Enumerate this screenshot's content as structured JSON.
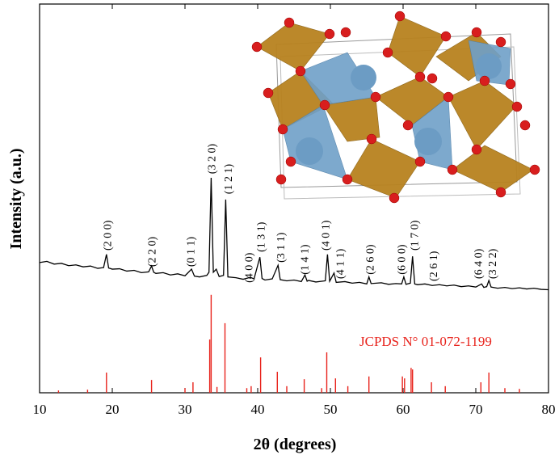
{
  "chart_data": {
    "type": "line",
    "x_label": "2θ (degrees)",
    "y_label": "Intensity (a.u.)",
    "xlim": [
      10,
      80
    ],
    "xticks": [
      10,
      20,
      30,
      40,
      50,
      60,
      70,
      80
    ],
    "ylim": [
      0,
      100
    ],
    "grid": false,
    "series": [
      {
        "color": "#000000",
        "x": [
          10,
          11,
          12,
          13,
          14,
          15,
          16,
          17,
          18,
          18.8,
          19.2,
          19.5,
          20,
          21,
          22,
          23,
          24,
          25,
          25.4,
          25.7,
          26,
          27,
          28,
          29,
          30,
          30.9,
          31.3,
          32,
          33,
          33.3,
          33.6,
          33.9,
          34.3,
          34.7,
          35.3,
          35.6,
          35.9,
          37,
          38,
          39,
          39.5,
          40.3,
          40.6,
          41,
          42,
          42.8,
          43.1,
          44,
          45,
          46,
          46.5,
          46.8,
          47,
          48,
          49.3,
          49.6,
          49.9,
          50.5,
          50.8,
          52,
          53,
          54,
          55,
          55.3,
          55.6,
          57,
          58,
          59,
          59.8,
          60.1,
          60.4,
          61,
          61.3,
          61.6,
          62,
          63,
          64,
          65,
          66,
          67,
          68,
          69,
          70,
          70.8,
          71.1,
          71.5,
          71.8,
          72.1,
          73,
          74,
          75,
          76,
          77,
          78,
          79,
          80
        ],
        "values": [
          33.5,
          33.8,
          33.1,
          33.3,
          32.7,
          32.9,
          32.4,
          32.6,
          32.0,
          32.2,
          35.6,
          32.1,
          31.8,
          31.9,
          31.3,
          31.5,
          30.9,
          31.1,
          32.6,
          31.0,
          30.7,
          30.9,
          30.3,
          30.6,
          30.1,
          31.8,
          30.0,
          29.8,
          30.2,
          31.0,
          55.3,
          31.0,
          31.8,
          29.9,
          30.2,
          49.7,
          29.8,
          29.6,
          29.2,
          29.7,
          29.3,
          34.9,
          29.4,
          29.0,
          29.3,
          32.8,
          29.1,
          28.8,
          29.0,
          28.6,
          30.3,
          28.7,
          28.9,
          28.5,
          28.8,
          35.6,
          28.7,
          30.8,
          28.4,
          28.6,
          28.2,
          28.4,
          28.0,
          29.8,
          28.1,
          28.3,
          27.9,
          28.1,
          28.0,
          29.8,
          27.9,
          28.2,
          35.1,
          28.0,
          27.8,
          28.0,
          27.6,
          27.8,
          27.5,
          27.7,
          27.3,
          27.5,
          27.2,
          28.0,
          27.1,
          27.3,
          28.9,
          27.2,
          26.9,
          27.1,
          26.8,
          27.0,
          26.7,
          26.9,
          26.6,
          26.5
        ]
      }
    ],
    "reference": {
      "label": "JCPDS N°  01-072-1199",
      "color": "#e8231c",
      "x": [
        12.6,
        16.6,
        19.2,
        25.4,
        30.0,
        31.1,
        33.4,
        33.6,
        34.4,
        35.5,
        38.5,
        39.1,
        40.4,
        42.7,
        44.0,
        46.4,
        48.8,
        49.5,
        50.7,
        52.4,
        55.3,
        59.9,
        60.2,
        61.1,
        61.3,
        63.9,
        65.8,
        70.7,
        71.8,
        74.0,
        76.0
      ],
      "values": [
        0.6,
        0.8,
        5.2,
        3.3,
        1.2,
        2.7,
        13.7,
        25.2,
        1.5,
        17.9,
        1.2,
        1.7,
        9.1,
        5.4,
        1.7,
        3.5,
        1.2,
        10.4,
        3.7,
        1.7,
        4.2,
        4.2,
        3.7,
        6.4,
        6.0,
        2.7,
        1.7,
        2.7,
        5.2,
        1.2,
        1.0
      ]
    },
    "peak_labels": [
      {
        "text": "(2 0 0)",
        "x": 19.3,
        "y": 36.6
      },
      {
        "text": "(2 2 0)",
        "x": 25.4,
        "y": 32.4
      },
      {
        "text": "(0 1 1)",
        "x": 30.7,
        "y": 32.4
      },
      {
        "text": "(3 2 0)",
        "x": 33.6,
        "y": 56.3
      },
      {
        "text": "(1 2 1)",
        "x": 35.9,
        "y": 51.1
      },
      {
        "text": "(4 0 0)",
        "x": 38.7,
        "y": 28.3
      },
      {
        "text": "(1 3 1)",
        "x": 40.4,
        "y": 36.2
      },
      {
        "text": "(3 1 1)",
        "x": 43.1,
        "y": 33.5
      },
      {
        "text": "(1 4 1)",
        "x": 46.4,
        "y": 30.4
      },
      {
        "text": "(4 0 1)",
        "x": 49.3,
        "y": 36.6
      },
      {
        "text": "(4 1 1)",
        "x": 51.3,
        "y": 29.3
      },
      {
        "text": "(2 6 0)",
        "x": 55.4,
        "y": 30.4
      },
      {
        "text": "(6 0 0)",
        "x": 59.7,
        "y": 30.4
      },
      {
        "text": "(1 7 0)",
        "x": 61.5,
        "y": 36.6
      },
      {
        "text": "(2 6 1)",
        "x": 64.1,
        "y": 28.7
      },
      {
        "text": "(6 4 0)",
        "x": 70.3,
        "y": 29.3
      },
      {
        "text": "(3 2 2)",
        "x": 72.2,
        "y": 29.3
      }
    ]
  }
}
